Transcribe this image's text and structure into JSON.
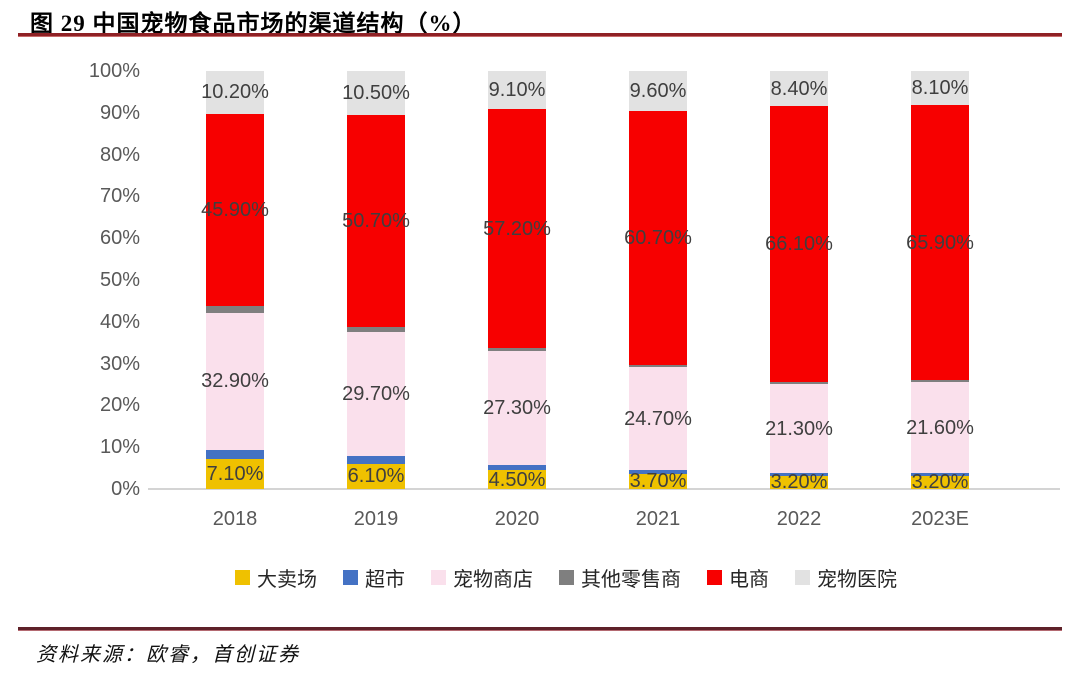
{
  "header": {
    "title": "图 29 中国宠物食品市场的渠道结构（%）"
  },
  "footer": {
    "source": "资料来源：欧睿，首创证券"
  },
  "colors": {
    "title_rule": "#8f2125",
    "footer_rule": "#5e2129",
    "axis_text": "#595959",
    "data_label_text": "#3f3f3f",
    "baseline": "#d4d4d4"
  },
  "chart_data": {
    "type": "bar",
    "stacked": true,
    "title": "图 29 中国宠物食品市场的渠道结构（%）",
    "xlabel": "",
    "ylabel": "",
    "unit": "%",
    "ylim": [
      0,
      100
    ],
    "grid": false,
    "legend_position": "bottom",
    "y_ticks": [
      "100%",
      "90%",
      "80%",
      "70%",
      "60%",
      "50%",
      "40%",
      "30%",
      "20%",
      "10%",
      "0%"
    ],
    "categories": [
      "2018",
      "2019",
      "2020",
      "2021",
      "2022",
      "2023E"
    ],
    "series": [
      {
        "name": "大卖场",
        "color": "#efc100",
        "values": [
          7.1,
          6.1,
          4.5,
          3.7,
          3.2,
          3.2
        ],
        "labels": [
          "7.10%",
          "6.10%",
          "4.50%",
          "3.70%",
          "3.20%",
          "3.20%"
        ]
      },
      {
        "name": "超市",
        "color": "#4472c4",
        "values": [
          2.2,
          1.8,
          1.2,
          0.8,
          0.6,
          0.7
        ]
      },
      {
        "name": "宠物商店",
        "color": "#fae0ec",
        "values": [
          32.9,
          29.7,
          27.3,
          24.7,
          21.3,
          21.6
        ],
        "labels": [
          "32.90%",
          "29.70%",
          "27.30%",
          "24.70%",
          "21.30%",
          "21.60%"
        ]
      },
      {
        "name": "其他零售商",
        "color": "#7f7f7f",
        "values": [
          1.7,
          1.2,
          0.7,
          0.5,
          0.4,
          0.5
        ]
      },
      {
        "name": "电商",
        "color": "#f70000",
        "values": [
          45.9,
          50.7,
          57.2,
          60.7,
          66.1,
          65.9
        ],
        "labels": [
          "45.90%",
          "50.70%",
          "57.20%",
          "60.70%",
          "66.10%",
          "65.90%"
        ]
      },
      {
        "name": "宠物医院",
        "color": "#e2e2e2",
        "values": [
          10.2,
          10.5,
          9.1,
          9.6,
          8.4,
          8.1
        ],
        "labels": [
          "10.20%",
          "10.50%",
          "9.10%",
          "9.60%",
          "8.40%",
          "8.10%"
        ]
      }
    ]
  }
}
